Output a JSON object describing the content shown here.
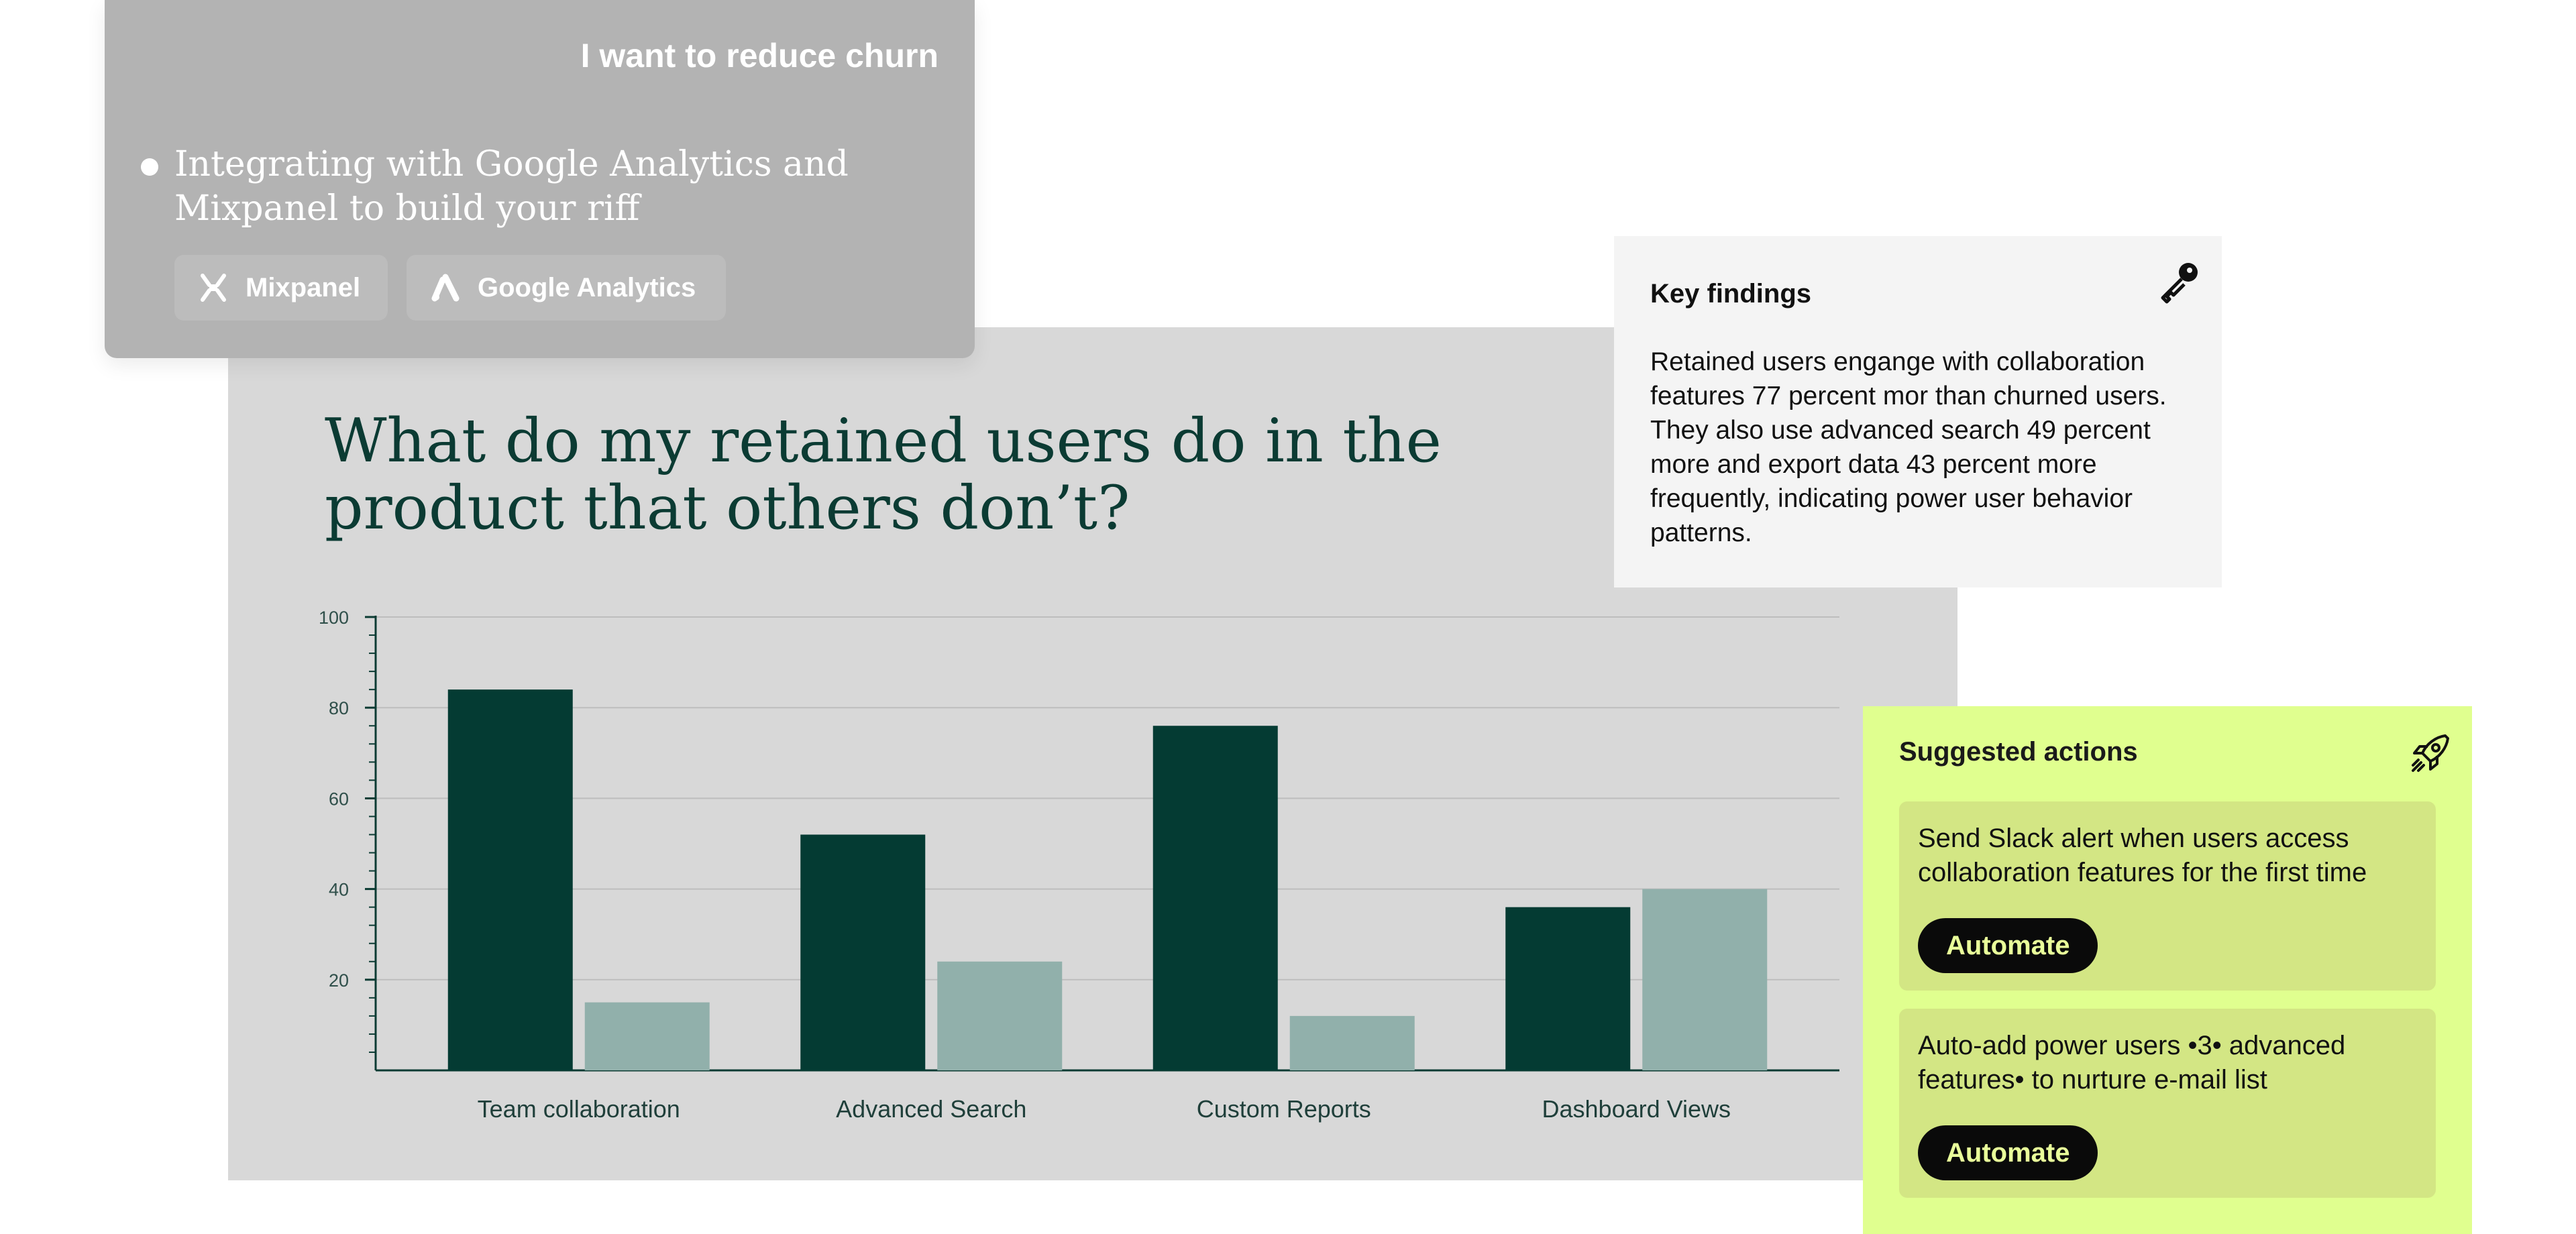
{
  "prompt": {
    "title": "I want to reduce churn",
    "status_text": "Integrating with Google Analytics and Mixpanel to build your riff",
    "integrations": [
      {
        "label": "Mixpanel",
        "icon": "mixpanel-icon"
      },
      {
        "label": "Google Analytics",
        "icon": "google-analytics-icon"
      }
    ]
  },
  "chart_panel": {
    "heading": "What do my retained users do in the product that others don’t?"
  },
  "chart_data": {
    "type": "bar",
    "categories": [
      "Team collaboration",
      "Advanced Search",
      "Custom Reports",
      "Dashboard Views"
    ],
    "series": [
      {
        "values": [
          84,
          52,
          76,
          36
        ],
        "color": "#043b33"
      },
      {
        "values": [
          15,
          24,
          12,
          40
        ],
        "color": "#91b0ab"
      }
    ],
    "yticks": [
      "100",
      "80",
      "60",
      "40",
      "20"
    ],
    "ylim": [
      0,
      100
    ],
    "grid": true
  },
  "findings": {
    "title": "Key findings",
    "icon": "key-icon",
    "text": "Retained users engange with collaboration features 77 percent mor than churned users. They also use advanced search 49 percent more and export data 43 percent more frequently, indicating power user behavior patterns."
  },
  "actions": {
    "title": "Suggested actions",
    "icon": "rocket-icon",
    "items": [
      {
        "text": "Send Slack alert when users access collaboration features for the first time",
        "button": "Automate"
      },
      {
        "text": "Auto-add power users •3• advanced features• to nurture e-mail list",
        "button": "Automate"
      }
    ]
  }
}
